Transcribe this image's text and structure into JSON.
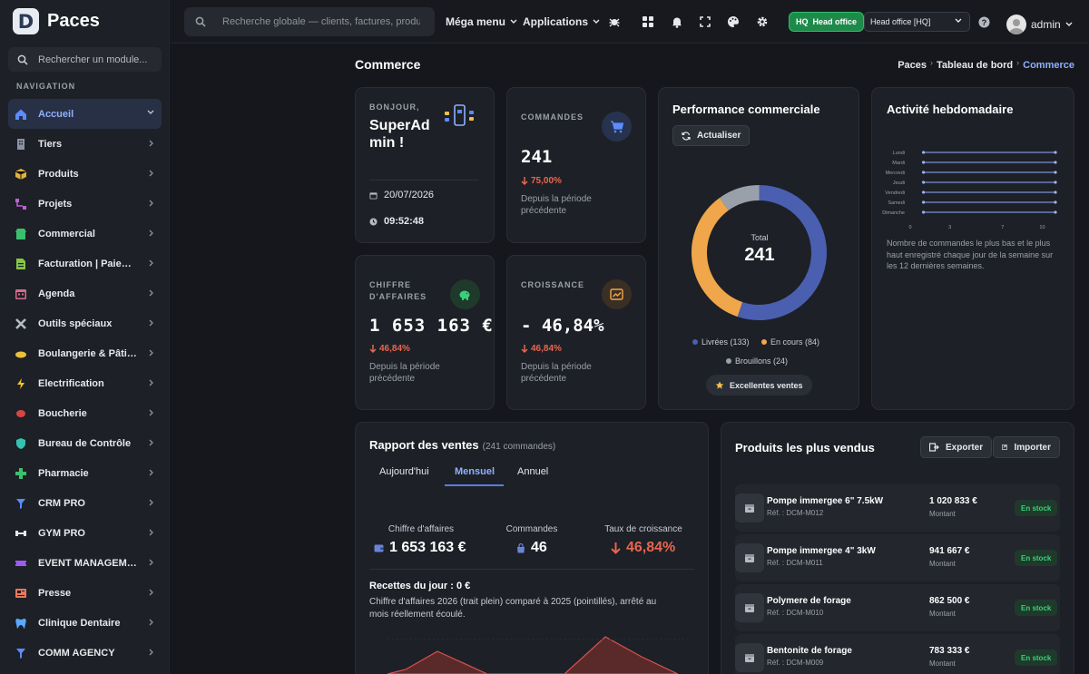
{
  "app": {
    "name": "Paces",
    "logo_letter": "D"
  },
  "sidebar": {
    "search_placeholder": "Rechercher un module...",
    "nav_title": "NAVIGATION",
    "items": [
      {
        "label": "Accueil",
        "icon": "home-icon",
        "color": "#5b8cff",
        "active": true
      },
      {
        "label": "Tiers",
        "icon": "building-icon",
        "color": "#8a94a6"
      },
      {
        "label": "Produits",
        "icon": "box-icon",
        "color": "#e0b23a"
      },
      {
        "label": "Projets",
        "icon": "diagram-icon",
        "color": "#c05fd8"
      },
      {
        "label": "Commercial",
        "icon": "shop-icon",
        "color": "#3bbf6e"
      },
      {
        "label": "Facturation | Paiement",
        "icon": "invoice-icon",
        "color": "#86c34a"
      },
      {
        "label": "Agenda",
        "icon": "calendar-icon",
        "color": "#d86a8a"
      },
      {
        "label": "Outils spéciaux",
        "icon": "tools-icon",
        "color": "#b6bcc6"
      },
      {
        "label": "Boulangerie & Pâtisserie",
        "icon": "bread-icon",
        "color": "#e8c23a"
      },
      {
        "label": "Electrification",
        "icon": "bolt-icon",
        "color": "#f3c623"
      },
      {
        "label": "Boucherie",
        "icon": "meat-icon",
        "color": "#d64545"
      },
      {
        "label": "Bureau de Contrôle",
        "icon": "shield-icon",
        "color": "#35c2b3"
      },
      {
        "label": "Pharmacie",
        "icon": "cross-icon",
        "color": "#3bbf6e"
      },
      {
        "label": "CRM PRO",
        "icon": "funnel-icon",
        "color": "#5b8cff"
      },
      {
        "label": "GYM PRO",
        "icon": "dumbbell-icon",
        "color": "#e6e8ec"
      },
      {
        "label": "EVENT MANAGEMENT",
        "icon": "ticket-icon",
        "color": "#9b5cf0"
      },
      {
        "label": "Presse",
        "icon": "newspaper-icon",
        "color": "#e8795a"
      },
      {
        "label": "Clinique Dentaire",
        "icon": "tooth-icon",
        "color": "#5ba8ff"
      },
      {
        "label": "COMM AGENCY",
        "icon": "funnel-icon",
        "color": "#5b8cff"
      }
    ]
  },
  "topbar": {
    "search_placeholder": "Recherche globale — clients, factures, produits...",
    "mega_menu": "Méga menu",
    "applications": "Applications",
    "hq_badge_prefix": "HQ",
    "hq_badge": "Head office",
    "hq_select": "Head office [HQ]",
    "user": "admin"
  },
  "page": {
    "title": "Commerce",
    "breadcrumb": [
      "Paces",
      "Tableau de bord",
      "Commerce"
    ]
  },
  "welcome": {
    "greeting": "BONJOUR,",
    "name_line1": "SuperAd",
    "name_line2": "min !",
    "date": "20/07/2026",
    "time": "09:52:48"
  },
  "kpis": {
    "commandes": {
      "label": "COMMANDES",
      "value": "241",
      "trend": "75,00%",
      "since": "Depuis la période précédente"
    },
    "ca": {
      "label1": "CHIFFRE",
      "label2": "D'AFFAIRES",
      "value": "1 653 163 €",
      "trend": "46,84%",
      "since": "Depuis la période précédente"
    },
    "croissance": {
      "label": "CROISSANCE",
      "value": "- 46,84%",
      "trend": "46,84%",
      "since": "Depuis la période précédente"
    }
  },
  "performance": {
    "title": "Performance commerciale",
    "refresh": "Actualiser",
    "total_label": "Total",
    "total": "241",
    "legend": [
      {
        "label": "Livrées (133)",
        "color": "#4a5fb0"
      },
      {
        "label": "En cours (84)",
        "color": "#f0a64a"
      },
      {
        "label": "Brouillons (24)",
        "color": "#9aa0aa"
      }
    ],
    "badge": "Excellentes ventes"
  },
  "weekly": {
    "title": "Activité hebdomadaire",
    "note": "Nombre de commandes le plus bas et le plus haut enregistré chaque jour de la semaine sur les 12 dernières semaines."
  },
  "report": {
    "title": "Rapport des ventes",
    "count": "(241 commandes)",
    "tabs": [
      "Aujourd'hui",
      "Mensuel",
      "Annuel"
    ],
    "active_tab": 1,
    "stats": [
      {
        "label": "Chiffre d'affaires",
        "value": "1 653 163 €"
      },
      {
        "label": "Commandes",
        "value": "46"
      },
      {
        "label": "Taux de croissance",
        "value": "46,84%"
      }
    ],
    "recettes": "Recettes du jour : 0 €",
    "desc": "Chiffre d'affaires 2026 (trait plein) comparé à 2025 (pointillés), arrêté au mois réellement écoulé."
  },
  "bestsellers": {
    "title": "Produits les plus vendus",
    "export": "Exporter",
    "import": "Importer",
    "amount_label": "Montant",
    "products": [
      {
        "name": "Pompe immergee 6\" 7.5kW",
        "ref": "Réf. : DCM-M012",
        "amount": "1 020 833 €",
        "status": "En stock"
      },
      {
        "name": "Pompe immergee 4\" 3kW",
        "ref": "Réf. : DCM-M011",
        "amount": "941 667 €",
        "status": "En stock"
      },
      {
        "name": "Polymere de forage",
        "ref": "Réf. : DCM-M010",
        "amount": "862 500 €",
        "status": "En stock"
      },
      {
        "name": "Bentonite de forage",
        "ref": "Réf. : DCM-M009",
        "amount": "783 333 €",
        "status": "En stock"
      }
    ]
  },
  "chart_data": [
    {
      "type": "pie",
      "categories": [
        "Livrées",
        "En cours",
        "Brouillons"
      ],
      "values": [
        133,
        84,
        24
      ],
      "colors": [
        "#4a5fb0",
        "#f0a64a",
        "#9aa0aa"
      ],
      "title": "",
      "center_label": "Total 241"
    },
    {
      "type": "bar",
      "categories": [
        "Lundi",
        "Mardi",
        "Mercredi",
        "Jeudi",
        "Vendredi",
        "Samedi",
        "Dimanche"
      ],
      "series": [
        {
          "values": [
            [
              1,
              11
            ],
            [
              1,
              11
            ],
            [
              1,
              11
            ],
            [
              1,
              11
            ],
            [
              1,
              11
            ],
            [
              1,
              11
            ],
            [
              1,
              11
            ]
          ]
        }
      ],
      "xticks": [
        0,
        3,
        7,
        10
      ],
      "xlim": [
        0,
        11
      ],
      "title": ""
    }
  ]
}
